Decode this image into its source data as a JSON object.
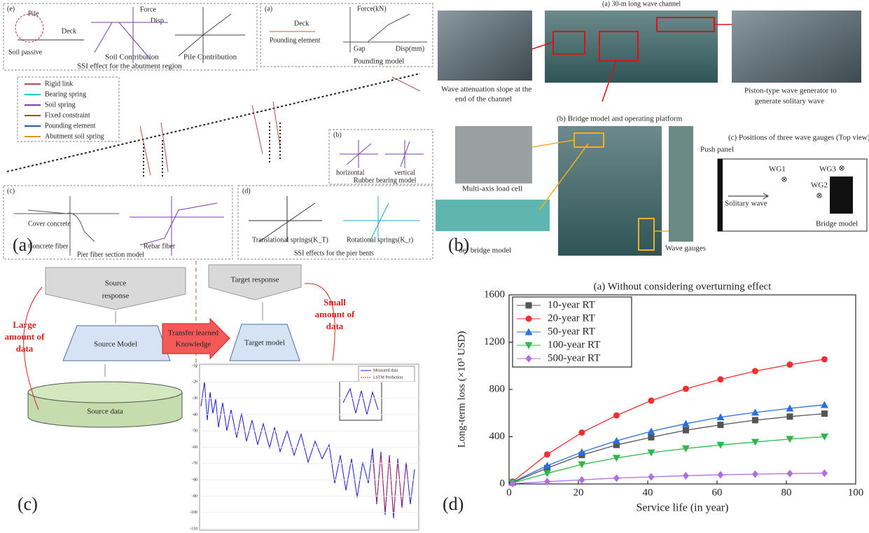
{
  "panel_a": {
    "label": "(a)",
    "abutment_box": {
      "label": "(e)",
      "pile": "Pile",
      "deck": "Deck",
      "soil": "Soil passive",
      "force": "Force",
      "disp": "Disp",
      "soil_caption": "Soil Contribution",
      "pile_caption": "Pile Contribution",
      "title": "SSI effect for the abutment region"
    },
    "pounding_box": {
      "label": "(a)",
      "deck": "Deck",
      "element": "Pounding element",
      "force": "Force(kN)",
      "gap": "Gap",
      "disp": "Disp(mm)",
      "title": "Pounding model"
    },
    "legend": [
      "Rigid link",
      "Bearing spring",
      "Soil spring",
      "Fixed constraint",
      "Pounding element",
      "Abutment soil spring"
    ],
    "bearing_box": {
      "label": "(b)",
      "horizontal": "horizontal",
      "vertical": "vertical",
      "title": "Rubber bearing model"
    },
    "fiber_box": {
      "label": "(c)",
      "cover": "Cover concrete",
      "concrete": "Concrete fiber",
      "rebar": "Rebar fiber",
      "title": "Pier fiber section model"
    },
    "ssi_box": {
      "label": "(d)",
      "translational": "Translational springs(K_T)",
      "rotational": "Rotational springs(K_r)",
      "title": "SSI effects for the pier bents"
    }
  },
  "panel_b": {
    "label": "(b)",
    "channel_title": "(a) 30-m long wave channel",
    "slope_caption": [
      "Wave attenuation slope at the",
      "end of the channel"
    ],
    "generator_caption": [
      "Piston-type wave generator to",
      "generate solitary wave"
    ],
    "platform_title": "(b) Bridge model and operating platform",
    "load_cell": "Multi-axis load cell",
    "girder": "der bridge model",
    "gauges": "Wave gauges",
    "positions_title": "(c) Positions of three wave gauges (Top view)",
    "push_panel": "Push panel",
    "wg1": "WG1",
    "wg2": "WG2",
    "wg3": "WG3",
    "solitary": "Solitary wave",
    "bridge": "Bridge model"
  },
  "panel_c": {
    "label": "(c)",
    "source_response": [
      "Source",
      "response"
    ],
    "source_model": "Source Model",
    "source_data": "Source data",
    "target_response": "Target response",
    "target_model": "Target model",
    "transfer": [
      "Transfer learned",
      "Knowledge"
    ],
    "large": [
      "Large",
      "amount of",
      "data"
    ],
    "small": [
      "Small",
      "amount of",
      "data"
    ],
    "inset": {
      "legend": [
        "Measured data",
        "LSTM Prediction"
      ],
      "yticks": [
        -10,
        -20,
        -30,
        -40,
        -50,
        -60,
        -70,
        -80,
        -90,
        -100,
        -110
      ]
    }
  },
  "panel_d": {
    "label": "(d)"
  },
  "chart_data": {
    "type": "line",
    "title": "(a) Without considering overturning effect",
    "x_label": "Service life (in year)",
    "y_label": "Long-term loss (×10³ USD)",
    "x": [
      1,
      11,
      21,
      31,
      41,
      51,
      61,
      71,
      81,
      91
    ],
    "series": [
      {
        "name": "10-year RT",
        "color": "#555555",
        "marker": "square",
        "values": [
          12,
          135,
          245,
          330,
          395,
          455,
          500,
          540,
          570,
          595
        ]
      },
      {
        "name": "20-year RT",
        "color": "#f03030",
        "marker": "circle",
        "values": [
          20,
          250,
          435,
          580,
          705,
          805,
          885,
          955,
          1010,
          1055
        ]
      },
      {
        "name": "50-year RT",
        "color": "#2a6fe0",
        "marker": "triangle-up",
        "values": [
          15,
          155,
          270,
          365,
          445,
          510,
          565,
          605,
          640,
          670
        ]
      },
      {
        "name": "100-year RT",
        "color": "#2eb84a",
        "marker": "triangle-down",
        "values": [
          8,
          90,
          165,
          220,
          265,
          300,
          330,
          355,
          380,
          400
        ]
      },
      {
        "name": "500-year RT",
        "color": "#b06ee0",
        "marker": "diamond",
        "values": [
          3,
          20,
          35,
          50,
          60,
          70,
          78,
          83,
          88,
          92
        ]
      }
    ],
    "xlim": [
      0,
      100
    ],
    "xticks": [
      0,
      20,
      40,
      60,
      80,
      100
    ],
    "ylim": [
      0,
      1600
    ],
    "yticks": [
      0,
      400,
      800,
      1200,
      1600
    ],
    "legend": "upper-left"
  }
}
